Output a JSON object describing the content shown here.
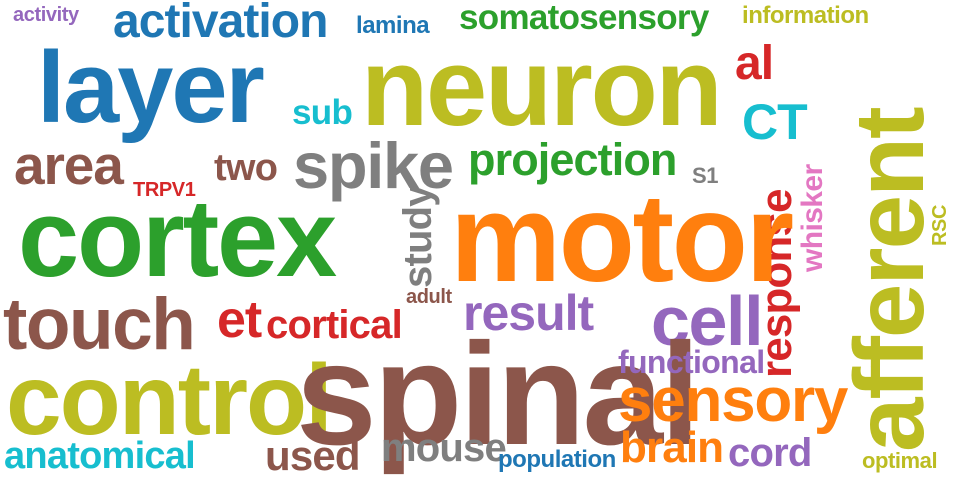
{
  "colors": {
    "blue": "#1f77b4",
    "orange": "#ff7f0e",
    "green": "#2ca02c",
    "red": "#d62728",
    "purple": "#9467bd",
    "brown": "#8c564b",
    "pink": "#e377c2",
    "gray": "#7f7f7f",
    "olive": "#bcbd22",
    "cyan": "#17becf"
  },
  "words": {
    "activity": {
      "text": "activity",
      "color": "#9467bd"
    },
    "activation": {
      "text": "activation",
      "color": "#1f77b4"
    },
    "lamina": {
      "text": "lamina",
      "color": "#1f77b4"
    },
    "somatosensory": {
      "text": "somatosensory",
      "color": "#2ca02c"
    },
    "information": {
      "text": "information",
      "color": "#bcbd22"
    },
    "layer": {
      "text": "layer",
      "color": "#1f77b4"
    },
    "neuron": {
      "text": "neuron",
      "color": "#bcbd22"
    },
    "al": {
      "text": "al",
      "color": "#d62728"
    },
    "sub": {
      "text": "sub",
      "color": "#17becf"
    },
    "ct": {
      "text": "CT",
      "color": "#17becf"
    },
    "afferent": {
      "text": "afferent",
      "color": "#bcbd22"
    },
    "area": {
      "text": "area",
      "color": "#8c564b"
    },
    "two": {
      "text": "two",
      "color": "#8c564b"
    },
    "spike": {
      "text": "spike",
      "color": "#7f7f7f"
    },
    "projection": {
      "text": "projection",
      "color": "#2ca02c"
    },
    "s1": {
      "text": "S1",
      "color": "#7f7f7f"
    },
    "trpv1": {
      "text": "TRPV1",
      "color": "#d62728"
    },
    "response": {
      "text": "response",
      "color": "#d62728"
    },
    "whisker": {
      "text": "whisker",
      "color": "#e377c2"
    },
    "rsc": {
      "text": "RSC",
      "color": "#bcbd22"
    },
    "cortex": {
      "text": "cortex",
      "color": "#2ca02c"
    },
    "study": {
      "text": "study",
      "color": "#7f7f7f"
    },
    "motor": {
      "text": "motor",
      "color": "#ff7f0e"
    },
    "adult": {
      "text": "adult",
      "color": "#8c564b"
    },
    "touch": {
      "text": "touch",
      "color": "#8c564b"
    },
    "et": {
      "text": "et",
      "color": "#d62728"
    },
    "cortical": {
      "text": "cortical",
      "color": "#d62728"
    },
    "result": {
      "text": "result",
      "color": "#9467bd"
    },
    "cell": {
      "text": "cell",
      "color": "#9467bd"
    },
    "control": {
      "text": "control",
      "color": "#bcbd22"
    },
    "spinal": {
      "text": "spinal",
      "color": "#8c564b"
    },
    "functional": {
      "text": "functional",
      "color": "#9467bd"
    },
    "sensory": {
      "text": "sensory",
      "color": "#ff7f0e"
    },
    "anatomical": {
      "text": "anatomical",
      "color": "#17becf"
    },
    "used": {
      "text": "used",
      "color": "#8c564b"
    },
    "mouse": {
      "text": "mouse",
      "color": "#7f7f7f"
    },
    "population": {
      "text": "population",
      "color": "#1f77b4"
    },
    "brain": {
      "text": "brain",
      "color": "#ff7f0e"
    },
    "cord": {
      "text": "cord",
      "color": "#9467bd"
    },
    "optimal": {
      "text": "optimal",
      "color": "#bcbd22"
    }
  }
}
